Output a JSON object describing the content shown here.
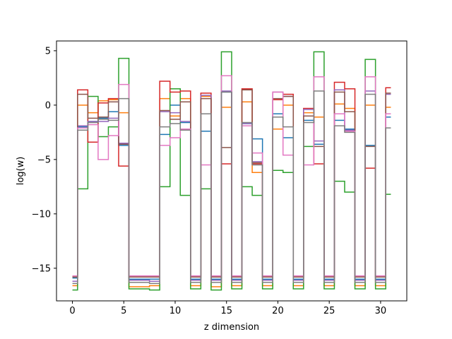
{
  "chart_data": {
    "type": "line",
    "step": "mid",
    "xlabel": "z dimension",
    "ylabel": "log(w)",
    "xlim": [
      -1.55,
      32.55
    ],
    "ylim": [
      -18.0,
      5.9
    ],
    "xticks": [
      0,
      5,
      10,
      15,
      20,
      25,
      30
    ],
    "xtick_labels": [
      "0",
      "5",
      "10",
      "15",
      "20",
      "25",
      "30"
    ],
    "yticks": [
      -15,
      -10,
      -5,
      0,
      5
    ],
    "ytick_labels": [
      "−15",
      "−10",
      "−5",
      "0",
      "5"
    ],
    "x": [
      0,
      1,
      2,
      3,
      4,
      5,
      6,
      7,
      8,
      9,
      10,
      11,
      12,
      13,
      14,
      15,
      16,
      17,
      18,
      19,
      20,
      21,
      22,
      23,
      24,
      25,
      26,
      27,
      28,
      29,
      30,
      31
    ],
    "colors": [
      "#1f77b4",
      "#ff7f0e",
      "#2ca02c",
      "#d62728",
      "#9467bd",
      "#8c564b",
      "#e377c2",
      "#7f7f7f"
    ],
    "series": [
      {
        "values": [
          -15.9,
          -2.0,
          -1.5,
          -1.2,
          -0.6,
          -3.7,
          -16.0,
          -16.0,
          -16.0,
          -2.7,
          0.0,
          -1.6,
          -16.0,
          -2.4,
          -16.0,
          1.2,
          -16.0,
          -1.7,
          -3.1,
          -16.0,
          -0.8,
          -3.0,
          -16.0,
          -1.4,
          -3.6,
          -16.0,
          -1.4,
          -2.2,
          -16.0,
          -3.7,
          -16.0,
          -1.1
        ]
      },
      {
        "values": [
          -16.6,
          0.0,
          -0.7,
          0.4,
          0.5,
          -0.7,
          -16.7,
          -16.7,
          -16.6,
          0.6,
          -1.0,
          0.6,
          -16.6,
          0.8,
          -16.7,
          -0.2,
          -16.6,
          0.3,
          -6.2,
          -16.6,
          -2.2,
          0.0,
          -16.6,
          -0.7,
          -1.1,
          -16.6,
          0.1,
          -0.3,
          -16.6,
          0.0,
          -16.6,
          -0.2
        ]
      },
      {
        "values": [
          -17.0,
          -7.7,
          0.8,
          -2.9,
          -2.0,
          4.3,
          -16.9,
          -16.9,
          -17.0,
          -7.5,
          1.5,
          -8.3,
          -16.9,
          -7.7,
          -17.0,
          4.9,
          -16.9,
          -7.5,
          -8.3,
          -16.9,
          -6.0,
          -6.2,
          -16.9,
          -3.8,
          4.9,
          -16.9,
          -7.0,
          -8.0,
          -16.9,
          4.2,
          -16.9,
          -8.2
        ]
      },
      {
        "values": [
          -15.8,
          1.4,
          -3.4,
          0.2,
          0.6,
          -5.6,
          -15.8,
          -15.8,
          -15.8,
          2.2,
          1.2,
          1.3,
          -15.8,
          1.1,
          -15.8,
          -5.4,
          -15.8,
          1.5,
          -5.4,
          -15.8,
          0.5,
          1.0,
          -15.8,
          -0.3,
          -5.4,
          -15.8,
          2.1,
          1.5,
          -15.8,
          -5.8,
          -15.8,
          1.6
        ]
      },
      {
        "values": [
          -16.2,
          -1.9,
          -1.5,
          -1.5,
          -1.2,
          -3.5,
          -16.1,
          -16.1,
          -16.2,
          -0.6,
          -0.7,
          -1.5,
          -16.1,
          0.9,
          -16.1,
          1.3,
          -16.1,
          -1.7,
          -5.2,
          -16.1,
          1.2,
          0.8,
          -16.1,
          -0.4,
          -3.3,
          -16.1,
          1.4,
          -2.3,
          -16.1,
          1.3,
          -16.1,
          1.0
        ]
      },
      {
        "values": [
          -15.8,
          1.0,
          -1.2,
          -1.1,
          0.3,
          -3.6,
          -15.8,
          -15.8,
          -15.8,
          -0.5,
          -1.3,
          0.3,
          -15.8,
          0.6,
          -15.8,
          -3.9,
          -15.8,
          1.4,
          -5.3,
          -15.8,
          0.6,
          0.8,
          -15.8,
          -1.0,
          -3.8,
          -15.8,
          1.2,
          -0.6,
          -15.8,
          -3.8,
          -15.8,
          1.1
        ]
      },
      {
        "values": [
          -15.7,
          -2.1,
          -1.8,
          -5.0,
          -2.8,
          1.9,
          -15.7,
          -15.7,
          -15.7,
          -3.7,
          -3.0,
          -2.2,
          -15.7,
          -5.5,
          -15.7,
          2.7,
          -15.7,
          -1.9,
          -4.4,
          -15.7,
          1.2,
          -4.6,
          -15.7,
          -5.5,
          2.6,
          -15.7,
          -0.8,
          -2.4,
          -15.7,
          2.6,
          -15.7,
          -0.8
        ]
      },
      {
        "values": [
          -16.4,
          -2.3,
          -1.6,
          -1.3,
          -1.4,
          0.6,
          -16.3,
          -16.3,
          -16.4,
          -2.0,
          -1.7,
          -2.3,
          -16.3,
          -0.8,
          -16.3,
          1.2,
          -16.3,
          -1.6,
          -5.5,
          -16.3,
          -1.1,
          -2.0,
          -16.3,
          -1.6,
          1.3,
          -16.3,
          -1.9,
          -2.5,
          -16.3,
          1.0,
          -16.3,
          -2.1
        ]
      }
    ]
  }
}
